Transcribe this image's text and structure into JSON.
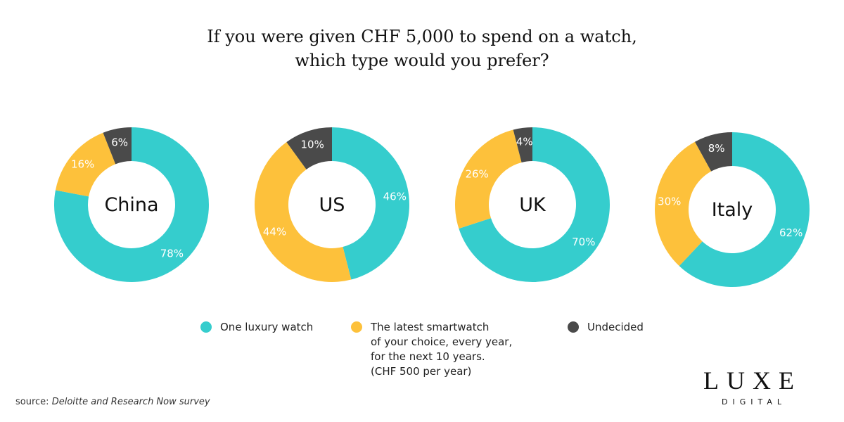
{
  "title": [
    "If you were given CHF 5,000 to spend on a watch,",
    "which type would you prefer?"
  ],
  "legend": [
    {
      "lines": [
        "One luxury watch"
      ],
      "color": "#35cdcd"
    },
    {
      "lines": [
        "The latest smartwatch",
        "of your choice, every year,",
        "for the next 10 years.",
        "(CHF 500 per year)"
      ],
      "color": "#fdc13b"
    },
    {
      "lines": [
        "Undecided"
      ],
      "color": "#4a4a4a"
    }
  ],
  "chart_data": [
    {
      "type": "donut",
      "center_label": "China",
      "values": [
        78,
        16,
        6
      ],
      "value_labels": [
        "78%",
        "16%",
        "6%"
      ]
    },
    {
      "type": "donut",
      "center_label": "US",
      "values": [
        46,
        44,
        10
      ],
      "value_labels": [
        "46%",
        "44%",
        "10%"
      ]
    },
    {
      "type": "donut",
      "center_label": "UK",
      "values": [
        70,
        26,
        4
      ],
      "value_labels": [
        "70%",
        "26%",
        "4%"
      ]
    },
    {
      "type": "donut",
      "center_label": "Italy",
      "values": [
        62,
        30,
        8
      ],
      "value_labels": [
        "62%",
        "30%",
        "8%"
      ]
    }
  ],
  "source": {
    "prefix": "source:",
    "text": "Deloitte and Research Now survey"
  },
  "logo": {
    "main": "LUXE",
    "sub": "DIGITAL"
  }
}
